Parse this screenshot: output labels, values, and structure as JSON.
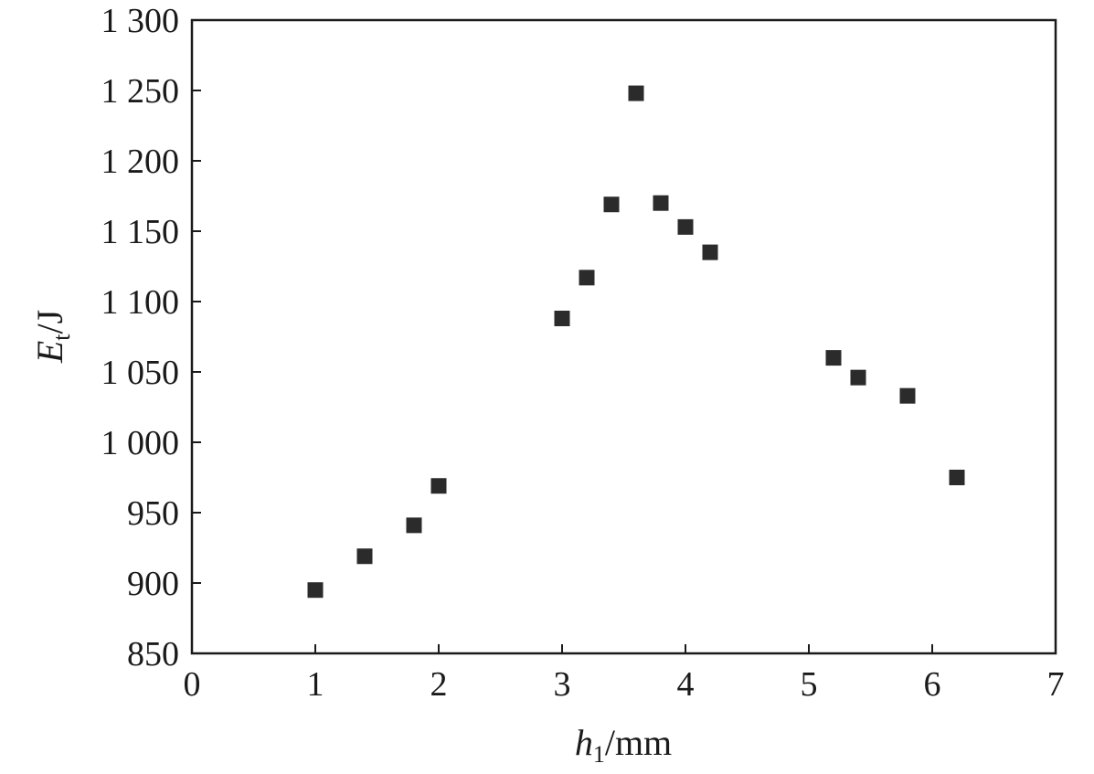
{
  "chart_data": {
    "type": "scatter",
    "title": "",
    "xlabel": {
      "main": "h",
      "sub": "1",
      "unit": "/mm"
    },
    "ylabel": {
      "main": "E",
      "sub": "t",
      "unit": "/J"
    },
    "xlim": [
      0,
      7
    ],
    "ylim": [
      850,
      1300
    ],
    "x_ticks": [
      0,
      1,
      2,
      3,
      4,
      5,
      6,
      7
    ],
    "x_tick_labels": [
      "0",
      "1",
      "2",
      "3",
      "4",
      "5",
      "6",
      "7"
    ],
    "y_ticks": [
      850,
      900,
      950,
      1000,
      1050,
      1100,
      1150,
      1200,
      1250,
      1300
    ],
    "y_tick_labels": [
      "850",
      "900",
      "950",
      "1 000",
      "1 050",
      "1 100",
      "1 150",
      "1 200",
      "1 250",
      "1 300"
    ],
    "grid": false,
    "legend": "none",
    "marker": "square",
    "marker_color": "#2b2b2b",
    "series": [
      {
        "points": [
          [
            1.0,
            895
          ],
          [
            1.4,
            919
          ],
          [
            1.8,
            941
          ],
          [
            2.0,
            969
          ],
          [
            3.0,
            1088
          ],
          [
            3.2,
            1117
          ],
          [
            3.4,
            1169
          ],
          [
            3.6,
            1248
          ],
          [
            3.8,
            1170
          ],
          [
            4.0,
            1153
          ],
          [
            4.2,
            1135
          ],
          [
            5.2,
            1060
          ],
          [
            5.4,
            1046
          ],
          [
            5.8,
            1033
          ],
          [
            6.2,
            975
          ]
        ]
      }
    ]
  }
}
